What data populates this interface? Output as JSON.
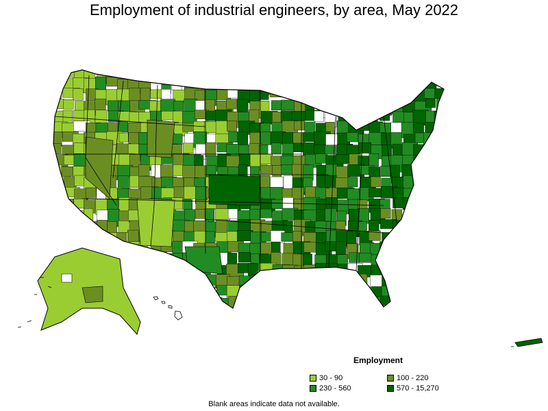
{
  "title": "Employment of industrial engineers, by area, May 2022",
  "legend": {
    "title": "Employment",
    "items": [
      {
        "label": "30 - 90",
        "color": "#9acd32"
      },
      {
        "label": "100 - 220",
        "color": "#6b8e23"
      },
      {
        "label": "230 - 560",
        "color": "#228b22"
      },
      {
        "label": "570 - 15,270",
        "color": "#006400"
      }
    ]
  },
  "footnote": "Blank areas indicate data not available.",
  "colors": {
    "low": "#9acd32",
    "mid_low": "#6b8e23",
    "mid_high": "#228b22",
    "high": "#006400",
    "blank": "#ffffff",
    "border": "#000000"
  }
}
